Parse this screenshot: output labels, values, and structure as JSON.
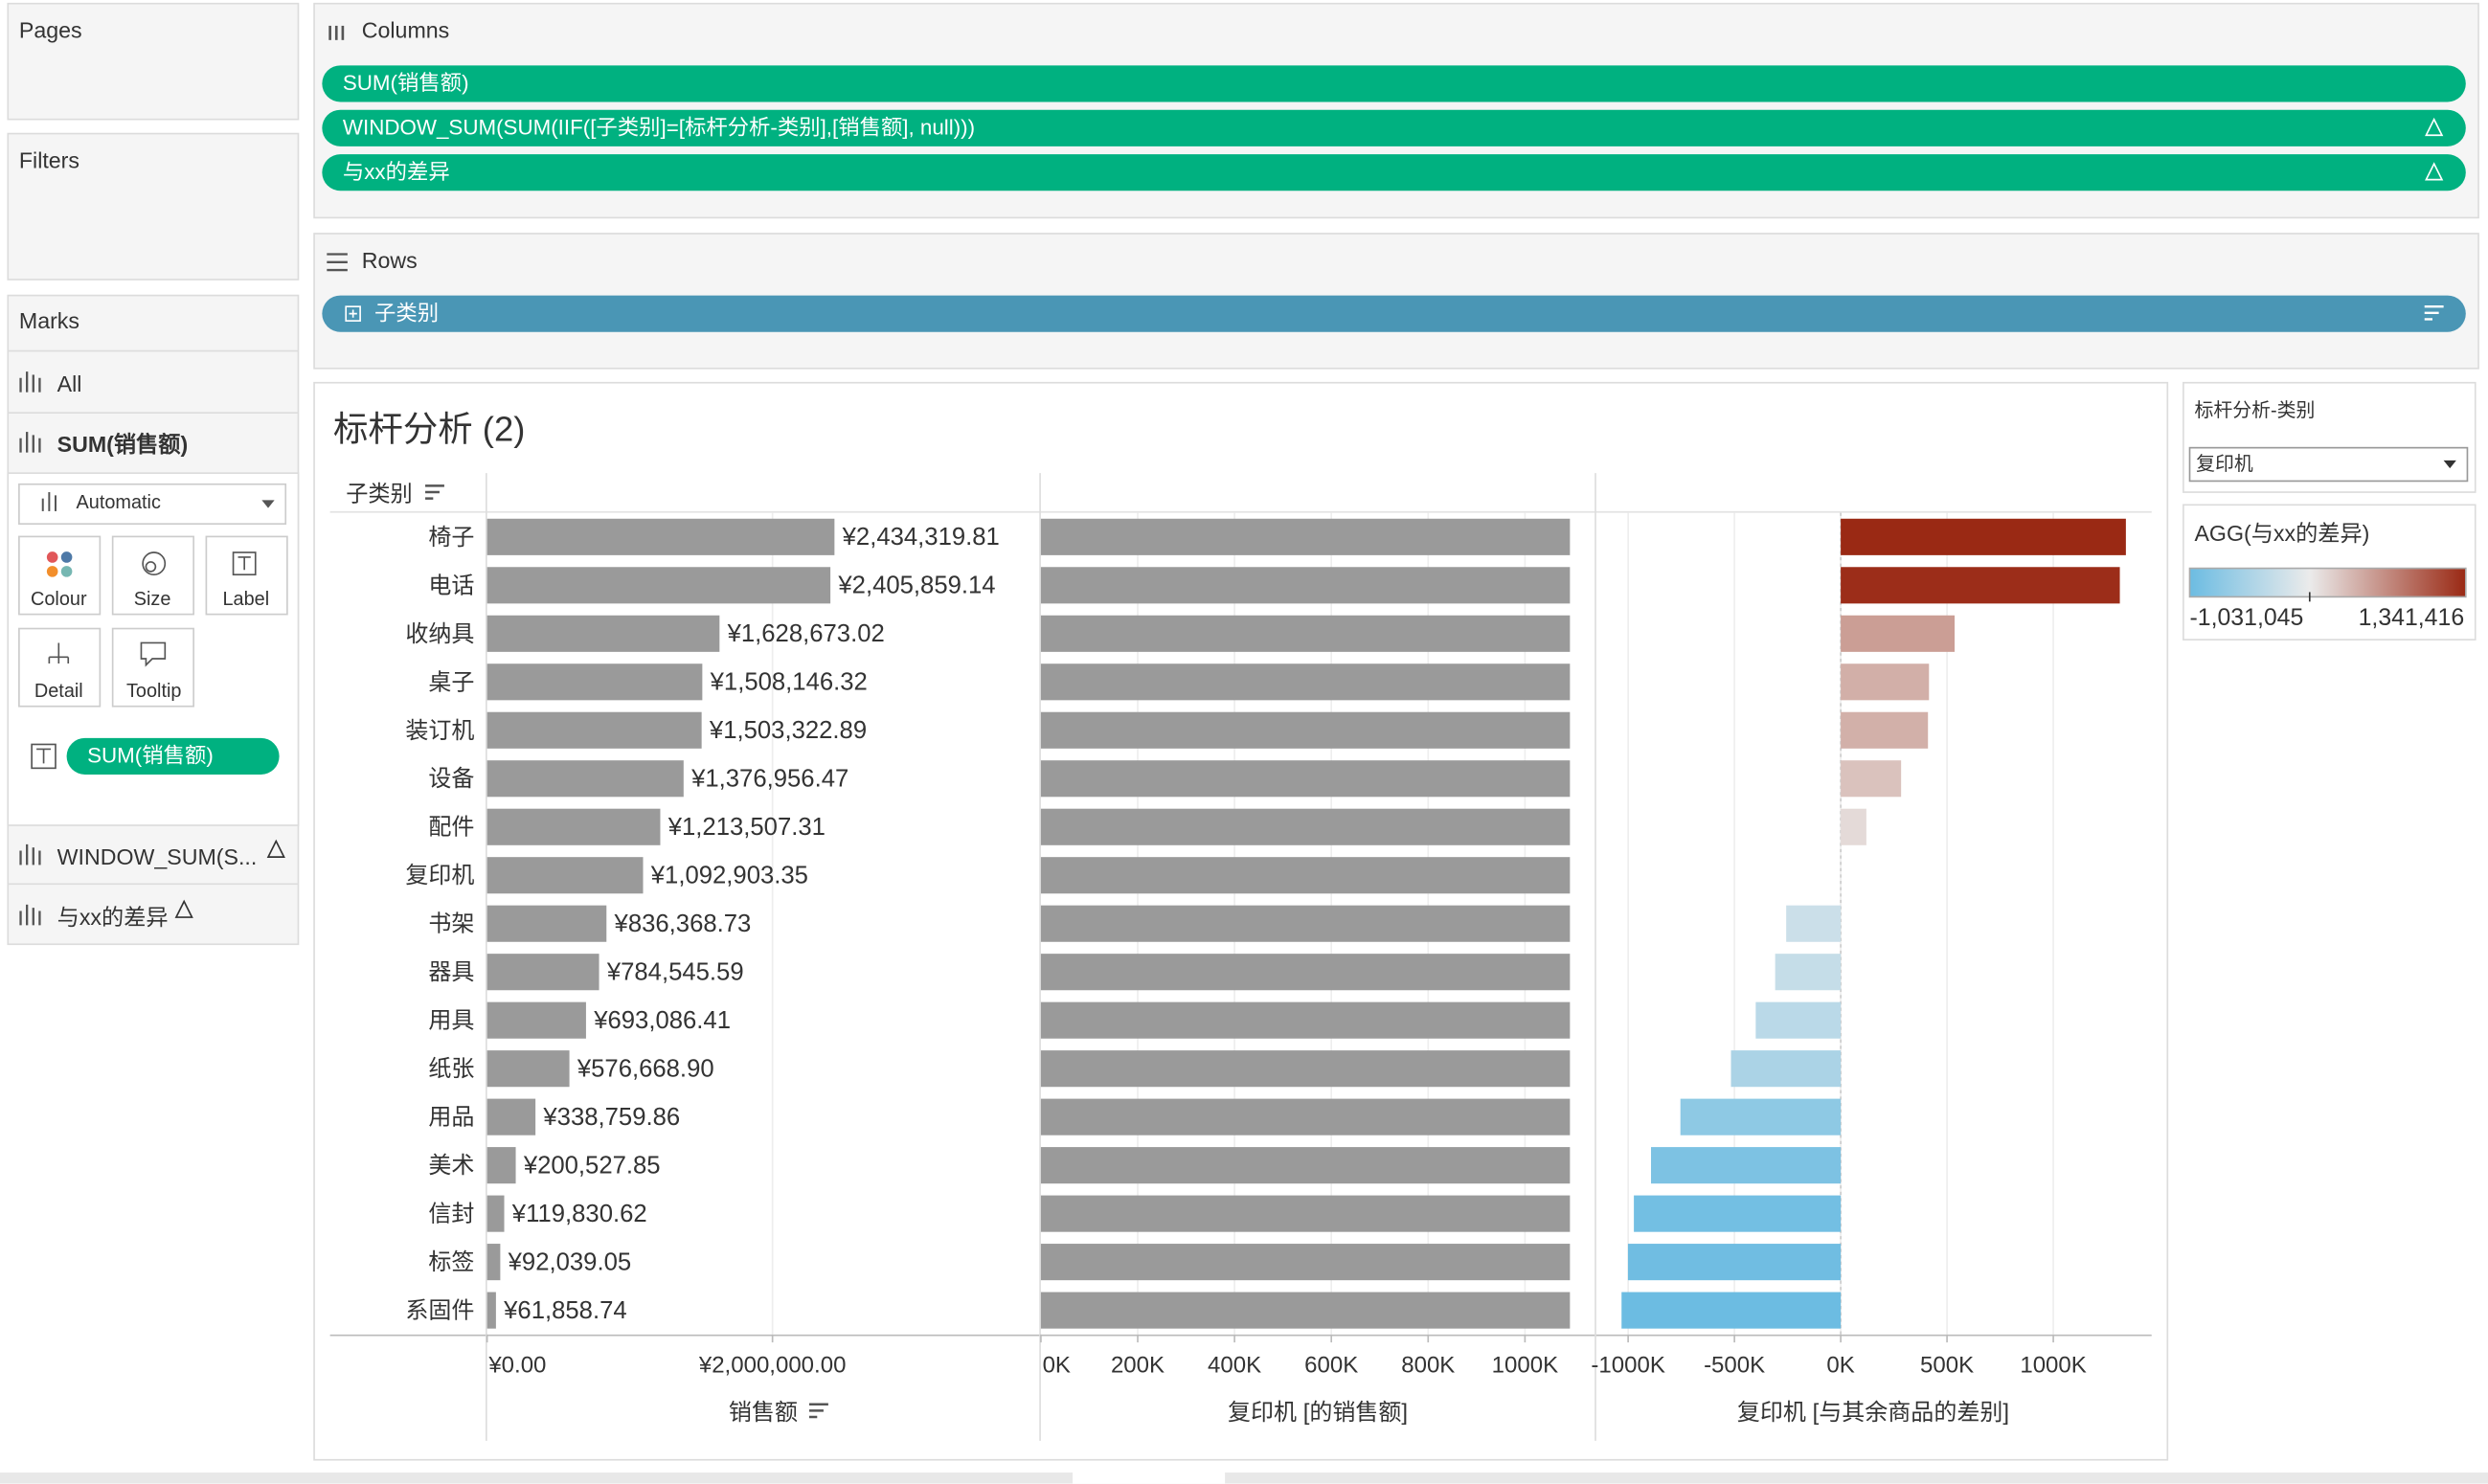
{
  "shelves": {
    "pages": "Pages",
    "filters": "Filters",
    "columns": {
      "label": "Columns",
      "pills": [
        "SUM(销售额)",
        "WINDOW_SUM(SUM(IIF([子类别]=[标杆分析-类别],[销售额], null)))",
        "与xx的差异"
      ]
    },
    "rows": {
      "label": "Rows",
      "pills": [
        "子类别"
      ]
    }
  },
  "marks": {
    "title": "Marks",
    "cards": [
      "All",
      "SUM(销售额)",
      "WINDOW_SUM(S...",
      "与xx的差异"
    ],
    "mark_type": "Automatic",
    "buttons": [
      "Colour",
      "Size",
      "Label",
      "Detail",
      "Tooltip"
    ],
    "label_pill": "SUM(销售额)"
  },
  "parameter": {
    "title": "标杆分析-类别",
    "value": "复印机"
  },
  "color_legend": {
    "title": "AGG(与xx的差异)",
    "min": {
      "value": -1031045,
      "label": "-1,031,045"
    },
    "max": {
      "value": 1341416,
      "label": "1,341,416"
    }
  },
  "view": {
    "title": "标杆分析 (2)",
    "row_header": "子类别"
  },
  "chart_data": [
    {
      "type": "bar",
      "orientation": "horizontal",
      "x_label": "销售额",
      "color": "#9a9a9a",
      "grid": true,
      "categories": [
        "椅子",
        "电话",
        "收纳具",
        "桌子",
        "装订机",
        "设备",
        "配件",
        "复印机",
        "书架",
        "器具",
        "用具",
        "纸张",
        "用品",
        "美术",
        "信封",
        "标签",
        "系固件"
      ],
      "values": [
        2434319.81,
        2405859.14,
        1628673.02,
        1508146.32,
        1503322.89,
        1376956.47,
        1213507.31,
        1092903.35,
        836368.73,
        784545.59,
        693086.41,
        576668.9,
        338759.86,
        200527.85,
        119830.62,
        92039.05,
        61858.74
      ],
      "value_labels": [
        "¥2,434,319.81",
        "¥2,405,859.14",
        "¥1,628,673.02",
        "¥1,508,146.32",
        "¥1,503,322.89",
        "¥1,376,956.47",
        "¥1,213,507.31",
        "¥1,092,903.35",
        "¥836,368.73",
        "¥784,545.59",
        "¥693,086.41",
        "¥576,668.90",
        "¥338,759.86",
        "¥200,527.85",
        "¥119,830.62",
        "¥92,039.05",
        "¥61,858.74"
      ],
      "xlim": [
        0,
        3870000
      ],
      "xticks": [
        {
          "value": 0,
          "label": "¥0.00"
        },
        {
          "value": 2000000,
          "label": "¥2,000,000.00"
        }
      ]
    },
    {
      "type": "bar",
      "orientation": "horizontal",
      "x_label": "复印机 [的销售额]",
      "color": "#9a9a9a",
      "grid": true,
      "values": [
        1092903.35,
        1092903.35,
        1092903.35,
        1092903.35,
        1092903.35,
        1092903.35,
        1092903.35,
        1092903.35,
        1092903.35,
        1092903.35,
        1092903.35,
        1092903.35,
        1092903.35,
        1092903.35,
        1092903.35,
        1092903.35,
        1092903.35
      ],
      "xlim": [
        0,
        1144000
      ],
      "xticks": [
        {
          "value": 0,
          "label": "0K"
        },
        {
          "value": 200000,
          "label": "200K"
        },
        {
          "value": 400000,
          "label": "400K"
        },
        {
          "value": 600000,
          "label": "600K"
        },
        {
          "value": 800000,
          "label": "800K"
        },
        {
          "value": 1000000,
          "label": "1000K"
        }
      ]
    },
    {
      "type": "bar",
      "orientation": "horizontal",
      "x_label": "复印机 [与其余商品的差别]",
      "colors": [
        "#6cbce2",
        "#ebebeb",
        "#9a2914"
      ],
      "grid": true,
      "values": [
        1341416.46,
        1312955.79,
        535769.67,
        415242.97,
        410419.54,
        284053.12,
        120603.96,
        0,
        -256534.62,
        -308357.76,
        -399816.94,
        -516234.45,
        -754143.49,
        -892375.5,
        -973072.73,
        -1000864.3,
        -1031044.61
      ],
      "xlim": [
        -1150000,
        1455000
      ],
      "xticks": [
        {
          "value": -1000000,
          "label": "-1000K"
        },
        {
          "value": -500000,
          "label": "-500K"
        },
        {
          "value": 0,
          "label": "0K"
        },
        {
          "value": 500000,
          "label": "500K"
        },
        {
          "value": 1000000,
          "label": "1000K"
        }
      ]
    }
  ]
}
